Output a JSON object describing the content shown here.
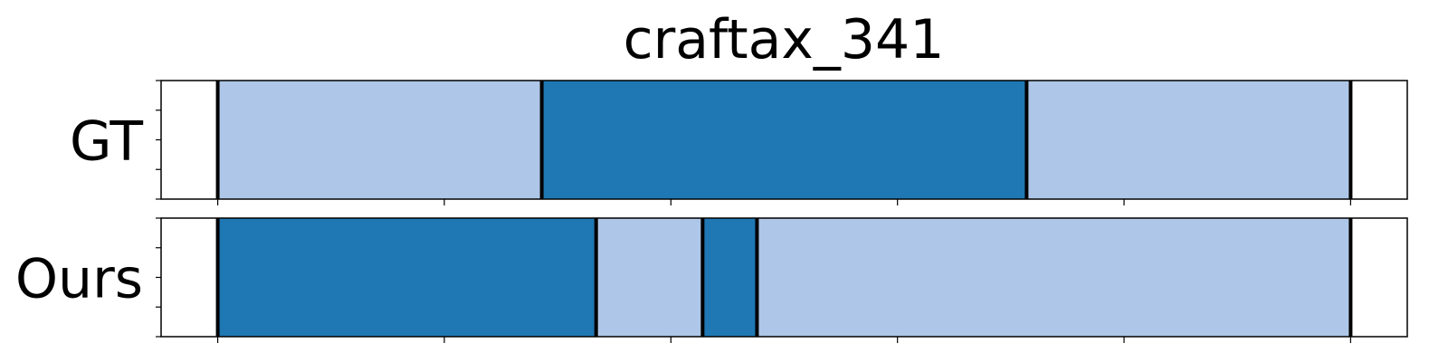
{
  "chart_data": {
    "type": "segmentation_timeline",
    "title": "craftax_341",
    "x_ticks": [
      0,
      100,
      200,
      300,
      400,
      500
    ],
    "xlim": [
      -25,
      525
    ],
    "colors": {
      "light": "#aec7e8",
      "dark": "#1f77b4"
    },
    "rows": [
      {
        "label": "GT",
        "segments": [
          {
            "start": 0,
            "end": 143,
            "class": "light"
          },
          {
            "start": 143,
            "end": 357,
            "class": "dark"
          },
          {
            "start": 357,
            "end": 500,
            "class": "light"
          }
        ],
        "boundaries": [
          0,
          143,
          357,
          500
        ]
      },
      {
        "label": "Ours",
        "segments": [
          {
            "start": 0,
            "end": 167,
            "class": "dark"
          },
          {
            "start": 167,
            "end": 214,
            "class": "light"
          },
          {
            "start": 214,
            "end": 238,
            "class": "dark"
          },
          {
            "start": 238,
            "end": 500,
            "class": "light"
          }
        ],
        "boundaries": [
          0,
          167,
          214,
          238,
          500
        ]
      }
    ]
  }
}
